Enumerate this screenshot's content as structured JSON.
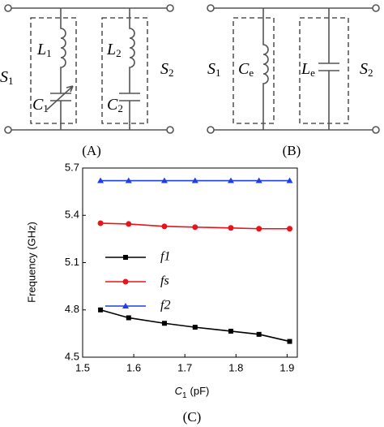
{
  "diagrams": [
    {
      "caption": "(A)",
      "labels": [
        {
          "main": "S",
          "sub": "1"
        },
        {
          "main": "L",
          "sub": "1"
        },
        {
          "main": "C",
          "sub": "1"
        },
        {
          "main": "L",
          "sub": "2"
        },
        {
          "main": "C",
          "sub": "2"
        },
        {
          "main": "S",
          "sub": "2"
        }
      ]
    },
    {
      "caption": "(B)",
      "labels": [
        {
          "main": "S",
          "sub": "1"
        },
        {
          "main": "C",
          "sub": "e"
        },
        {
          "main": "L",
          "sub": "e"
        },
        {
          "main": "S",
          "sub": "2"
        }
      ]
    }
  ],
  "chart_data": {
    "type": "line",
    "caption": "(C)",
    "xlabel": {
      "main": "C",
      "sub": "1",
      "unit": "(pF)"
    },
    "ylabel": "Frequency (GHz)",
    "x": [
      1.535,
      1.59,
      1.66,
      1.72,
      1.79,
      1.845,
      1.905
    ],
    "series": [
      {
        "name": "f1",
        "color": "#000000",
        "marker": "square",
        "values": [
          4.8,
          4.75,
          4.715,
          4.69,
          4.665,
          4.645,
          4.6
        ]
      },
      {
        "name": "fs",
        "color": "#e8141c",
        "marker": "circle",
        "values": [
          5.35,
          5.345,
          5.33,
          5.325,
          5.32,
          5.315,
          5.315
        ]
      },
      {
        "name": "f2",
        "color": "#1f3fe0",
        "marker": "triangle",
        "values": [
          5.62,
          5.62,
          5.62,
          5.62,
          5.62,
          5.62,
          5.62
        ]
      }
    ],
    "xlim": [
      1.5,
      1.92
    ],
    "xticks": [
      1.5,
      1.6,
      1.7,
      1.8,
      1.9
    ],
    "ylim": [
      4.5,
      5.7
    ],
    "yticks": [
      4.5,
      4.8,
      5.1,
      5.4,
      5.7
    ]
  }
}
